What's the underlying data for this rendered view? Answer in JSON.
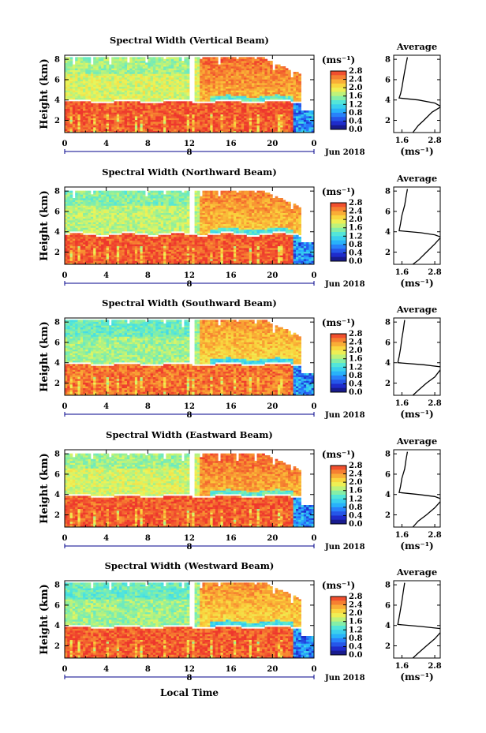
{
  "chart_data": [
    {
      "type": "heatmap",
      "title": "Spectral Width (Vertical Beam)",
      "ylabel": "Height (km)",
      "x_ticks": [
        "0",
        "4",
        "8",
        "12",
        "16",
        "20",
        "0"
      ],
      "y_ticks": [
        "2",
        "4",
        "6",
        "8"
      ],
      "xlim": [
        0,
        24
      ],
      "ylim": [
        0.8,
        8.4
      ],
      "date_tick": "8",
      "date_label": "Jun 2018",
      "colorbar": {
        "unit": "(ms⁻¹)",
        "ticks": [
          "2.8",
          "2.4",
          "2.0",
          "1.6",
          "1.2",
          "0.8",
          "0.4",
          "0.0"
        ],
        "range": [
          0,
          2.8
        ]
      },
      "field": {
        "layer_top_km": 3.8,
        "upper_value": 1.8,
        "lower_value": 2.7,
        "data_top_km": 8.2
      },
      "average": {
        "title": "Average",
        "xlabel": "(ms⁻¹)",
        "x_ticks": [
          "1.6",
          "2.8"
        ],
        "xlim": [
          1.3,
          3.0
        ],
        "y_ticks": [
          "2",
          "4",
          "6",
          "8"
        ],
        "profile_a": [
          [
            1.8,
            8.2
          ],
          [
            1.75,
            7.5
          ],
          [
            1.7,
            6.8
          ],
          [
            1.65,
            6.0
          ],
          [
            1.6,
            5.2
          ],
          [
            1.55,
            4.6
          ],
          [
            1.5,
            4.2
          ],
          [
            2.2,
            4.0
          ],
          [
            2.8,
            3.7
          ],
          [
            3.0,
            3.4
          ]
        ],
        "profile_b": [
          [
            3.0,
            3.3
          ],
          [
            2.7,
            2.8
          ],
          [
            2.4,
            2.0
          ],
          [
            2.2,
            1.5
          ],
          [
            2.0,
            0.8
          ]
        ]
      }
    },
    {
      "type": "heatmap",
      "title": "Spectral Width (Northward Beam)",
      "ylabel": "Height (km)",
      "x_ticks": [
        "0",
        "4",
        "8",
        "12",
        "16",
        "20",
        "0"
      ],
      "y_ticks": [
        "2",
        "4",
        "6",
        "8"
      ],
      "xlim": [
        0,
        24
      ],
      "ylim": [
        0.8,
        8.4
      ],
      "date_tick": "8",
      "date_label": "Jun 2018",
      "colorbar": {
        "unit": "(ms⁻¹)",
        "ticks": [
          "2.8",
          "2.4",
          "2.0",
          "1.6",
          "1.2",
          "0.8",
          "0.4",
          "0.0"
        ],
        "range": [
          0,
          2.8
        ]
      },
      "field": {
        "layer_top_km": 3.7,
        "upper_value": 1.7,
        "lower_value": 2.7,
        "data_top_km": 8.1
      },
      "average": {
        "title": "Average",
        "xlabel": "(ms⁻¹)",
        "x_ticks": [
          "1.6",
          "2.8"
        ],
        "xlim": [
          1.3,
          3.0
        ],
        "y_ticks": [
          "2",
          "4",
          "6",
          "8"
        ],
        "profile_a": [
          [
            1.8,
            8.2
          ],
          [
            1.75,
            7.4
          ],
          [
            1.7,
            6.6
          ],
          [
            1.6,
            5.6
          ],
          [
            1.55,
            4.8
          ],
          [
            1.5,
            4.1
          ],
          [
            2.3,
            3.9
          ],
          [
            2.8,
            3.7
          ],
          [
            3.0,
            3.5
          ]
        ],
        "profile_b": [
          [
            3.0,
            3.4
          ],
          [
            2.8,
            2.8
          ],
          [
            2.5,
            2.0
          ],
          [
            2.2,
            1.2
          ],
          [
            2.0,
            0.8
          ]
        ]
      }
    },
    {
      "type": "heatmap",
      "title": "Spectral Width (Southward Beam)",
      "ylabel": "Height (km)",
      "x_ticks": [
        "0",
        "4",
        "8",
        "12",
        "16",
        "20",
        "0"
      ],
      "y_ticks": [
        "2",
        "4",
        "6",
        "8"
      ],
      "xlim": [
        0,
        24
      ],
      "ylim": [
        0.8,
        8.4
      ],
      "date_tick": "8",
      "date_label": "Jun 2018",
      "colorbar": {
        "unit": "(ms⁻¹)",
        "ticks": [
          "2.8",
          "2.4",
          "2.0",
          "1.6",
          "1.2",
          "0.8",
          "0.4",
          "0.0"
        ],
        "range": [
          0,
          2.8
        ]
      },
      "field": {
        "layer_top_km": 3.8,
        "upper_value": 1.6,
        "lower_value": 2.6,
        "data_top_km": 8.3
      },
      "average": {
        "title": "Average",
        "xlabel": "(ms⁻¹)",
        "x_ticks": [
          "1.6",
          "2.8"
        ],
        "xlim": [
          1.3,
          3.0
        ],
        "y_ticks": [
          "2",
          "4",
          "6",
          "8"
        ],
        "profile_a": [
          [
            1.7,
            8.2
          ],
          [
            1.65,
            7.2
          ],
          [
            1.6,
            6.4
          ],
          [
            1.55,
            5.4
          ],
          [
            1.5,
            4.6
          ],
          [
            1.45,
            4.0
          ],
          [
            2.4,
            3.8
          ],
          [
            3.0,
            3.6
          ]
        ],
        "profile_b": [
          [
            3.0,
            3.3
          ],
          [
            2.8,
            2.6
          ],
          [
            2.5,
            2.0
          ],
          [
            2.2,
            1.3
          ],
          [
            2.0,
            0.8
          ]
        ]
      }
    },
    {
      "type": "heatmap",
      "title": "Spectral Width (Eastward Beam)",
      "ylabel": "Height (km)",
      "x_ticks": [
        "0",
        "4",
        "8",
        "12",
        "16",
        "20",
        "0"
      ],
      "y_ticks": [
        "2",
        "4",
        "6",
        "8"
      ],
      "xlim": [
        0,
        24
      ],
      "ylim": [
        0.8,
        8.4
      ],
      "date_tick": "8",
      "date_label": "Jun 2018",
      "colorbar": {
        "unit": "(ms⁻¹)",
        "ticks": [
          "2.8",
          "2.4",
          "2.0",
          "1.6",
          "1.2",
          "0.8",
          "0.4",
          "0.0"
        ],
        "range": [
          0,
          2.8
        ]
      },
      "field": {
        "layer_top_km": 3.8,
        "upper_value": 1.8,
        "lower_value": 2.7,
        "data_top_km": 8.1
      },
      "average": {
        "title": "Average",
        "xlabel": "(ms⁻¹)",
        "x_ticks": [
          "1.6",
          "2.8"
        ],
        "xlim": [
          1.3,
          3.0
        ],
        "y_ticks": [
          "2",
          "4",
          "6",
          "8"
        ],
        "profile_a": [
          [
            1.8,
            8.2
          ],
          [
            1.75,
            7.4
          ],
          [
            1.7,
            6.5
          ],
          [
            1.6,
            5.6
          ],
          [
            1.55,
            4.8
          ],
          [
            1.5,
            4.2
          ],
          [
            2.2,
            4.0
          ],
          [
            2.8,
            3.8
          ],
          [
            3.0,
            3.6
          ]
        ],
        "profile_b": [
          [
            3.0,
            3.3
          ],
          [
            2.8,
            2.7
          ],
          [
            2.5,
            2.0
          ],
          [
            2.2,
            1.4
          ],
          [
            2.0,
            0.8
          ]
        ]
      }
    },
    {
      "type": "heatmap",
      "title": "Spectral Width (Westward Beam)",
      "ylabel": "Height (km)",
      "xlabel": "Local Time",
      "x_ticks": [
        "0",
        "4",
        "8",
        "12",
        "16",
        "20",
        "0"
      ],
      "y_ticks": [
        "2",
        "4",
        "6",
        "8"
      ],
      "xlim": [
        0,
        24
      ],
      "ylim": [
        0.8,
        8.4
      ],
      "date_tick": "8",
      "date_label": "Jun 2018",
      "colorbar": {
        "unit": "(ms⁻¹)",
        "ticks": [
          "2.8",
          "2.4",
          "2.0",
          "1.6",
          "1.2",
          "0.8",
          "0.4",
          "0.0"
        ],
        "range": [
          0,
          2.8
        ]
      },
      "field": {
        "layer_top_km": 3.8,
        "upper_value": 1.6,
        "lower_value": 2.7,
        "data_top_km": 8.3
      },
      "average": {
        "title": "Average",
        "xlabel": "(ms⁻¹)",
        "x_ticks": [
          "1.6",
          "2.8"
        ],
        "xlim": [
          1.3,
          3.0
        ],
        "y_ticks": [
          "2",
          "4",
          "6",
          "8"
        ],
        "profile_a": [
          [
            1.7,
            8.2
          ],
          [
            1.65,
            7.3
          ],
          [
            1.6,
            6.4
          ],
          [
            1.55,
            5.6
          ],
          [
            1.5,
            4.8
          ],
          [
            1.45,
            4.1
          ],
          [
            2.3,
            3.9
          ],
          [
            3.0,
            3.7
          ]
        ],
        "profile_b": [
          [
            3.0,
            3.3
          ],
          [
            2.8,
            2.7
          ],
          [
            2.5,
            2.0
          ],
          [
            2.2,
            1.3
          ],
          [
            2.0,
            0.8
          ]
        ]
      }
    }
  ]
}
